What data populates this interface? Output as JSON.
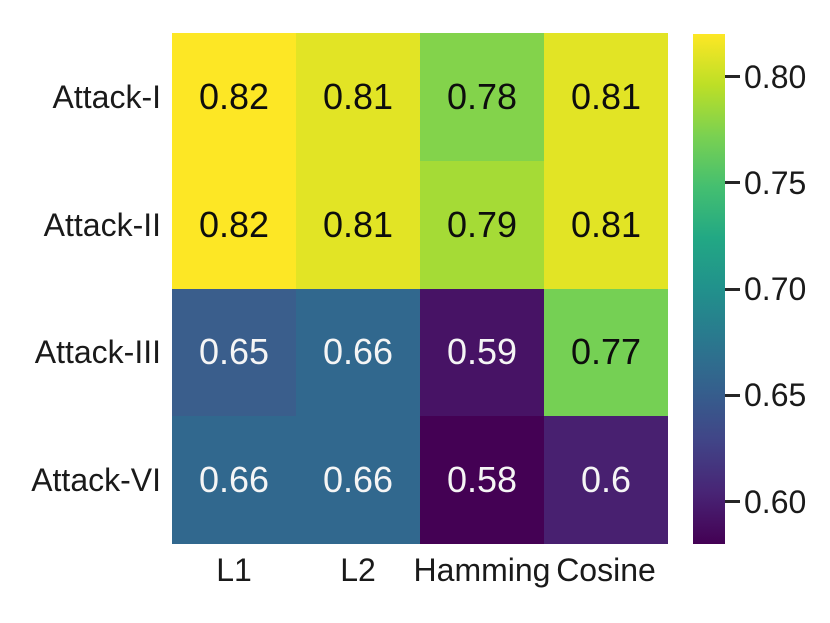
{
  "figure": {
    "background_color": "#ffffff",
    "axis_label_color": "#1a1a1a",
    "tick_mark_color": "#262626"
  },
  "chart_data": {
    "type": "heatmap",
    "title": "",
    "xlabel": "",
    "ylabel": "",
    "rows": [
      "Attack-I",
      "Attack-II",
      "Attack-III",
      "Attack-VI"
    ],
    "columns": [
      "L1",
      "L2",
      "Hamming",
      "Cosine"
    ],
    "values": [
      [
        0.82,
        0.81,
        0.78,
        0.81
      ],
      [
        0.82,
        0.81,
        0.79,
        0.81
      ],
      [
        0.65,
        0.66,
        0.59,
        0.77
      ],
      [
        0.66,
        0.66,
        0.58,
        0.6
      ]
    ],
    "value_labels": [
      [
        "0.82",
        "0.81",
        "0.78",
        "0.81"
      ],
      [
        "0.82",
        "0.81",
        "0.79",
        "0.81"
      ],
      [
        "0.65",
        "0.66",
        "0.59",
        "0.77"
      ],
      [
        "0.66",
        "0.66",
        "0.58",
        "0.6"
      ]
    ],
    "cell_colors": [
      [
        "#fde725",
        "#e2e425",
        "#83d34b",
        "#e2e425"
      ],
      [
        "#fde725",
        "#e2e425",
        "#a5db36",
        "#e2e425"
      ],
      [
        "#3a5e8c",
        "#31688e",
        "#471365",
        "#75d054"
      ],
      [
        "#31688e",
        "#31688e",
        "#440154",
        "#482070"
      ]
    ],
    "text_colors": [
      [
        "#0d0d0d",
        "#0d0d0d",
        "#0d0d0d",
        "#0d0d0d"
      ],
      [
        "#0d0d0d",
        "#0d0d0d",
        "#0d0d0d",
        "#0d0d0d"
      ],
      [
        "#f5f5f5",
        "#f5f5f5",
        "#f5f5f5",
        "#0d0d0d"
      ],
      [
        "#f5f5f5",
        "#f5f5f5",
        "#f5f5f5",
        "#f5f5f5"
      ]
    ],
    "grid_lines": false,
    "legend_position": "colorbar-right",
    "colormap": "viridis",
    "vmin": 0.58,
    "vmax": 0.82,
    "colorbar": {
      "ticks": [
        {
          "label": "0.80",
          "value": 0.8
        },
        {
          "label": "0.75",
          "value": 0.75
        },
        {
          "label": "0.70",
          "value": 0.7
        },
        {
          "label": "0.65",
          "value": 0.65
        },
        {
          "label": "0.60",
          "value": 0.6
        }
      ],
      "gradient_stops_bottom_to_top": [
        "#440154",
        "#482475",
        "#414487",
        "#355f8d",
        "#2a788e",
        "#21918c",
        "#22a884",
        "#44bf70",
        "#7ad151",
        "#bddf26",
        "#fde725"
      ]
    }
  }
}
